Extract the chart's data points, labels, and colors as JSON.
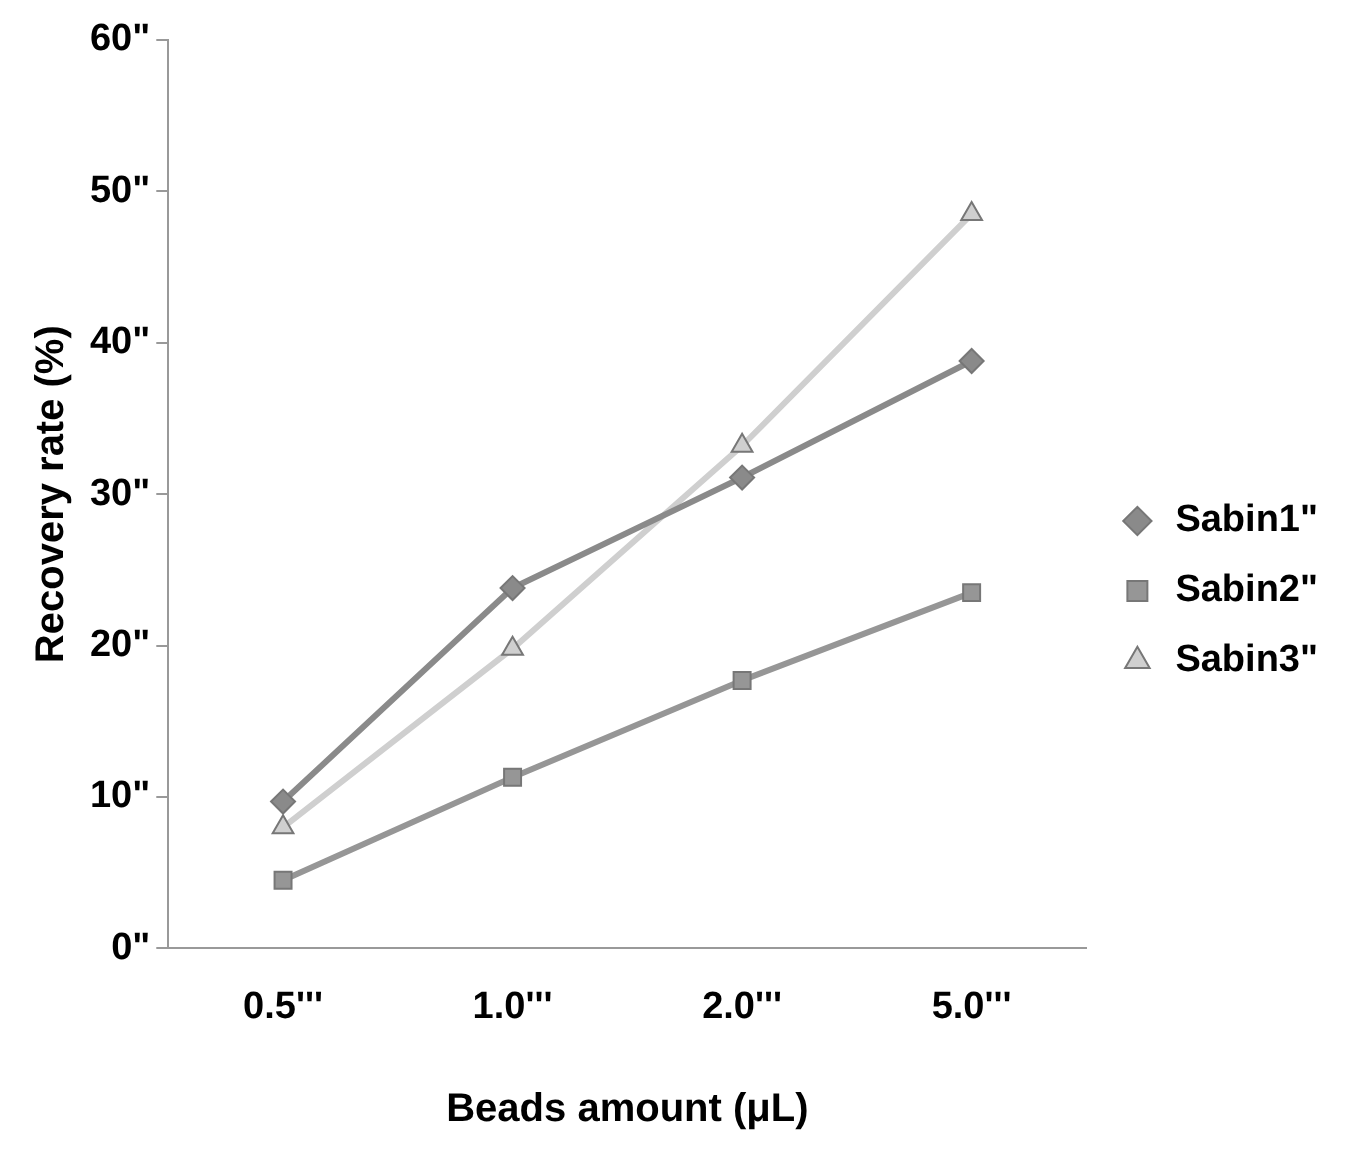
{
  "chart_data": {
    "type": "line",
    "xlabel": "Beads amount (μL)",
    "ylabel": "Recovery rate (%)",
    "categories": [
      "0.5'''",
      "1.0'''",
      "2.0'''",
      "5.0'''"
    ],
    "series": [
      {
        "name": "Sabin1\"",
        "color": "#8a8a8a",
        "marker": "diamond",
        "values": [
          9.7,
          23.8,
          31.1,
          38.8
        ]
      },
      {
        "name": "Sabin2\"",
        "color": "#969696",
        "marker": "square",
        "values": [
          4.5,
          11.3,
          17.7,
          23.5
        ]
      },
      {
        "name": "Sabin3\"",
        "color": "#cfcfcf",
        "marker": "triangle",
        "values": [
          8.0,
          19.8,
          33.2,
          48.5
        ]
      }
    ],
    "ylim": [
      0,
      60
    ],
    "yticks": [
      {
        "value": 0,
        "label": "0\""
      },
      {
        "value": 10,
        "label": "10\""
      },
      {
        "value": 20,
        "label": "20\""
      },
      {
        "value": 30,
        "label": "30\""
      },
      {
        "value": 40,
        "label": "40\""
      },
      {
        "value": 50,
        "label": "50\""
      },
      {
        "value": 60,
        "label": "60\""
      }
    ],
    "grid": false,
    "legend": "right",
    "line_style": "solid"
  }
}
